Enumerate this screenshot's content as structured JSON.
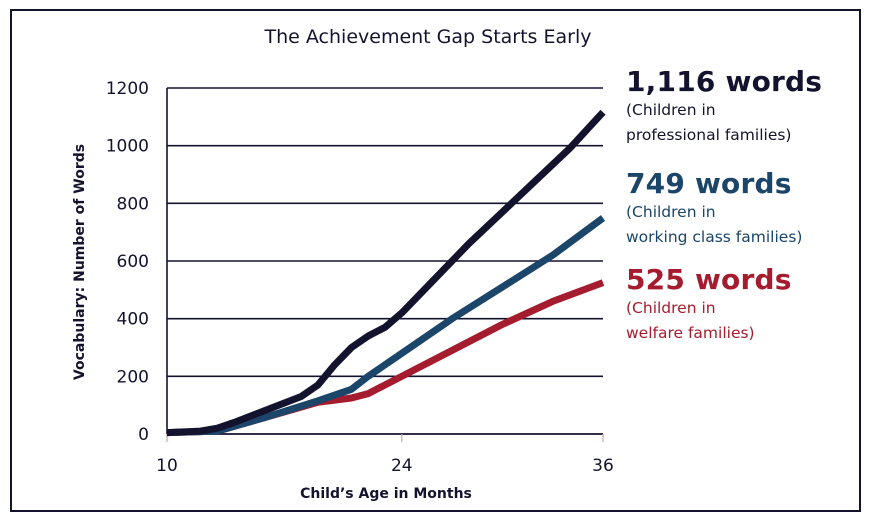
{
  "chart_data": {
    "type": "line",
    "title": "The Achievement Gap Starts Early",
    "xlabel": "Child’s Age in Months",
    "ylabel": "Vocabulary: Number of Words",
    "xlim": [
      10,
      36
    ],
    "ylim": [
      0,
      1200
    ],
    "x_ticks": [
      "10",
      "24",
      "36"
    ],
    "y_ticks": [
      "0",
      "200",
      "400",
      "600",
      "800",
      "1000",
      "1200"
    ],
    "grid": "horizontal",
    "series": [
      {
        "name": "Children in professional families",
        "color": "#14132e",
        "x": [
          10,
          12,
          13,
          14,
          16,
          18,
          19,
          20,
          21,
          22,
          23,
          24,
          26,
          28,
          30,
          32,
          34,
          36
        ],
        "y": [
          5,
          10,
          20,
          40,
          85,
          130,
          170,
          240,
          300,
          340,
          370,
          420,
          540,
          660,
          770,
          880,
          990,
          1116
        ]
      },
      {
        "name": "Children in working class families",
        "color": "#1b4569",
        "x": [
          10,
          13,
          16,
          19,
          21,
          22,
          24,
          27,
          30,
          33,
          36
        ],
        "y": [
          5,
          10,
          60,
          115,
          155,
          200,
          280,
          400,
          510,
          620,
          749
        ]
      },
      {
        "name": "Children in welfare families",
        "color": "#a51c2e",
        "x": [
          10,
          13,
          16,
          19,
          21,
          22,
          24,
          27,
          30,
          33,
          36
        ],
        "y": [
          5,
          10,
          60,
          110,
          125,
          140,
          200,
          290,
          380,
          460,
          525
        ]
      }
    ]
  },
  "callouts": [
    {
      "value": "1,116 words",
      "desc1": "(Children in",
      "desc2": "professional families)",
      "color": "#14132e"
    },
    {
      "value": "749 words",
      "desc1": "(Children in",
      "desc2": "working class families)",
      "color": "#1b4569"
    },
    {
      "value": "525 words",
      "desc1": "(Children in",
      "desc2": "welfare families)",
      "color": "#a51c2e"
    }
  ]
}
